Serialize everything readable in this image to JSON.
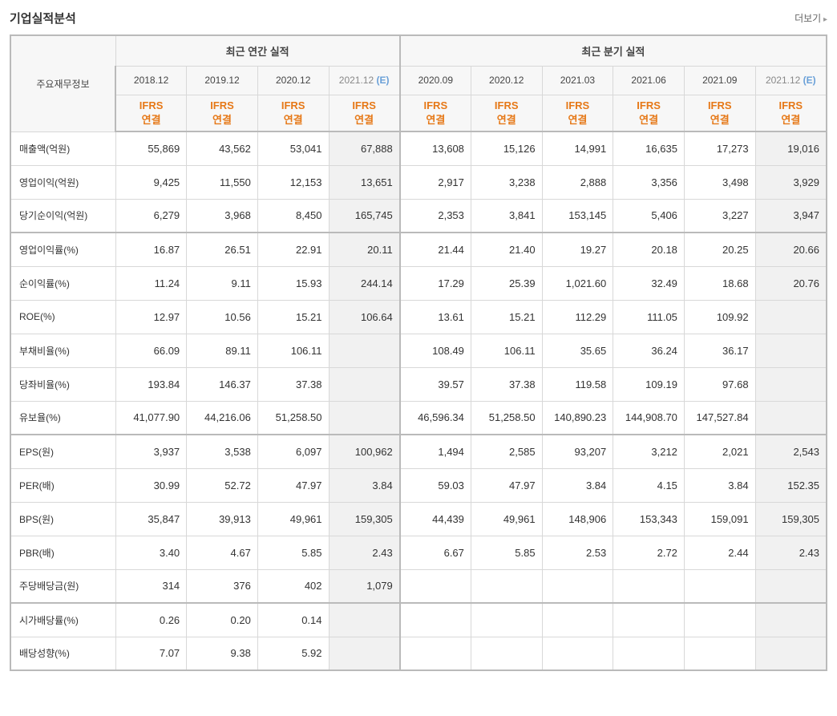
{
  "header": {
    "title": "기업실적분석",
    "more": "더보기"
  },
  "table": {
    "row_header_label": "주요재무정보",
    "group_annual": "최근 연간 실적",
    "group_quarter": "최근 분기 실적",
    "acct_label_line1": "IFRS",
    "acct_label_line2": "연결",
    "periods": {
      "annual": [
        "2018.12",
        "2019.12",
        "2020.12",
        "2021.12 (E)"
      ],
      "quarter": [
        "2020.09",
        "2020.12",
        "2021.03",
        "2021.06",
        "2021.09",
        "2021.12 (E)"
      ]
    },
    "estimate_cols": [
      3,
      9
    ],
    "section_start_rows": [
      3,
      9,
      14
    ],
    "rows": [
      {
        "label": "매출액(억원)",
        "v": [
          "55,869",
          "43,562",
          "53,041",
          "67,888",
          "13,608",
          "15,126",
          "14,991",
          "16,635",
          "17,273",
          "19,016"
        ]
      },
      {
        "label": "영업이익(억원)",
        "v": [
          "9,425",
          "11,550",
          "12,153",
          "13,651",
          "2,917",
          "3,238",
          "2,888",
          "3,356",
          "3,498",
          "3,929"
        ]
      },
      {
        "label": "당기순이익(억원)",
        "v": [
          "6,279",
          "3,968",
          "8,450",
          "165,745",
          "2,353",
          "3,841",
          "153,145",
          "5,406",
          "3,227",
          "3,947"
        ]
      },
      {
        "label": "영업이익률(%)",
        "v": [
          "16.87",
          "26.51",
          "22.91",
          "20.11",
          "21.44",
          "21.40",
          "19.27",
          "20.18",
          "20.25",
          "20.66"
        ]
      },
      {
        "label": "순이익률(%)",
        "v": [
          "11.24",
          "9.11",
          "15.93",
          "244.14",
          "17.29",
          "25.39",
          "1,021.60",
          "32.49",
          "18.68",
          "20.76"
        ]
      },
      {
        "label": "ROE(%)",
        "v": [
          "12.97",
          "10.56",
          "15.21",
          "106.64",
          "13.61",
          "15.21",
          "112.29",
          "111.05",
          "109.92",
          ""
        ]
      },
      {
        "label": "부채비율(%)",
        "v": [
          "66.09",
          "89.11",
          "106.11",
          "",
          "108.49",
          "106.11",
          "35.65",
          "36.24",
          "36.17",
          ""
        ]
      },
      {
        "label": "당좌비율(%)",
        "v": [
          "193.84",
          "146.37",
          "37.38",
          "",
          "39.57",
          "37.38",
          "119.58",
          "109.19",
          "97.68",
          ""
        ]
      },
      {
        "label": "유보율(%)",
        "v": [
          "41,077.90",
          "44,216.06",
          "51,258.50",
          "",
          "46,596.34",
          "51,258.50",
          "140,890.23",
          "144,908.70",
          "147,527.84",
          ""
        ]
      },
      {
        "label": "EPS(원)",
        "v": [
          "3,937",
          "3,538",
          "6,097",
          "100,962",
          "1,494",
          "2,585",
          "93,207",
          "3,212",
          "2,021",
          "2,543"
        ]
      },
      {
        "label": "PER(배)",
        "v": [
          "30.99",
          "52.72",
          "47.97",
          "3.84",
          "59.03",
          "47.97",
          "3.84",
          "4.15",
          "3.84",
          "152.35"
        ]
      },
      {
        "label": "BPS(원)",
        "v": [
          "35,847",
          "39,913",
          "49,961",
          "159,305",
          "44,439",
          "49,961",
          "148,906",
          "153,343",
          "159,091",
          "159,305"
        ]
      },
      {
        "label": "PBR(배)",
        "v": [
          "3.40",
          "4.67",
          "5.85",
          "2.43",
          "6.67",
          "5.85",
          "2.53",
          "2.72",
          "2.44",
          "2.43"
        ]
      },
      {
        "label": "주당배당금(원)",
        "v": [
          "314",
          "376",
          "402",
          "1,079",
          "",
          "",
          "",
          "",
          "",
          ""
        ]
      },
      {
        "label": "시가배당률(%)",
        "v": [
          "0.26",
          "0.20",
          "0.14",
          "",
          "",
          "",
          "",
          "",
          "",
          ""
        ]
      },
      {
        "label": "배당성향(%)",
        "v": [
          "7.07",
          "9.38",
          "5.92",
          "",
          "",
          "",
          "",
          "",
          "",
          ""
        ]
      }
    ]
  },
  "colors": {
    "ifrs": "#e67817",
    "est_mark": "#6aa0d8",
    "border": "#d8d8d8",
    "heavy_border": "#bababa",
    "header_bg": "#f7f7f7",
    "est_bg": "#f1f1f1"
  }
}
